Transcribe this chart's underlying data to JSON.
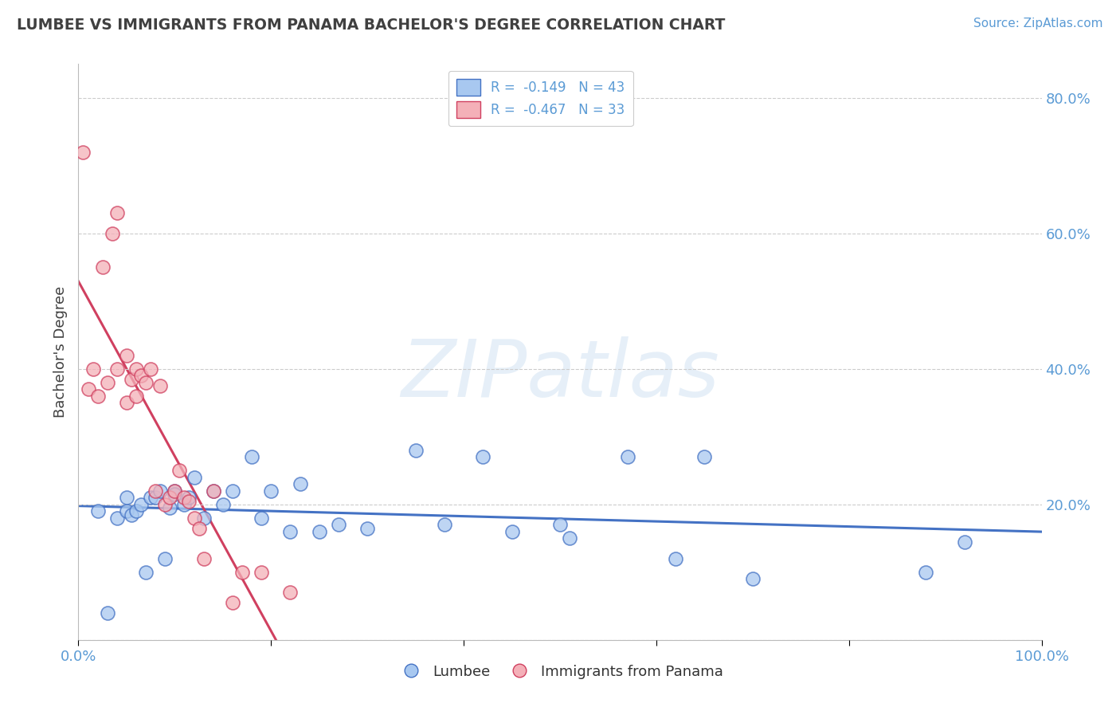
{
  "title": "LUMBEE VS IMMIGRANTS FROM PANAMA BACHELOR'S DEGREE CORRELATION CHART",
  "source": "Source: ZipAtlas.com",
  "ylabel": "Bachelor's Degree",
  "watermark": "ZIPatlas",
  "xlim": [
    0.0,
    1.0
  ],
  "ylim": [
    0.0,
    0.85
  ],
  "ytick_positions": [
    0.0,
    0.2,
    0.4,
    0.6,
    0.8
  ],
  "ytick_labels": [
    "",
    "20.0%",
    "40.0%",
    "60.0%",
    "80.0%"
  ],
  "xtick_positions": [
    0.0,
    0.2,
    0.4,
    0.6,
    0.8,
    1.0
  ],
  "xtick_labels": [
    "0.0%",
    "",
    "",
    "",
    "",
    "100.0%"
  ],
  "color_blue": "#a8c8f0",
  "color_pink": "#f4b0b8",
  "line_blue": "#4472c4",
  "line_pink": "#d04060",
  "background": "#ffffff",
  "grid_color": "#cccccc",
  "title_color": "#404040",
  "axis_label_color": "#5b9bd5",
  "legend_text_color": "#5b9bd5",
  "legend_label1": "R =  -0.149   N = 43",
  "legend_label2": "R =  -0.467   N = 33",
  "legend_bottom1": "Lumbee",
  "legend_bottom2": "Immigrants from Panama",
  "lumbee_x": [
    0.02,
    0.03,
    0.04,
    0.05,
    0.05,
    0.055,
    0.06,
    0.065,
    0.07,
    0.075,
    0.08,
    0.085,
    0.09,
    0.095,
    0.1,
    0.1,
    0.11,
    0.115,
    0.12,
    0.13,
    0.14,
    0.15,
    0.16,
    0.18,
    0.19,
    0.2,
    0.22,
    0.23,
    0.25,
    0.27,
    0.3,
    0.35,
    0.38,
    0.42,
    0.45,
    0.5,
    0.51,
    0.57,
    0.62,
    0.65,
    0.7,
    0.88,
    0.92
  ],
  "lumbee_y": [
    0.19,
    0.04,
    0.18,
    0.19,
    0.21,
    0.185,
    0.19,
    0.2,
    0.1,
    0.21,
    0.21,
    0.22,
    0.12,
    0.195,
    0.22,
    0.215,
    0.2,
    0.21,
    0.24,
    0.18,
    0.22,
    0.2,
    0.22,
    0.27,
    0.18,
    0.22,
    0.16,
    0.23,
    0.16,
    0.17,
    0.165,
    0.28,
    0.17,
    0.27,
    0.16,
    0.17,
    0.15,
    0.27,
    0.12,
    0.27,
    0.09,
    0.1,
    0.145
  ],
  "panama_x": [
    0.005,
    0.01,
    0.015,
    0.02,
    0.025,
    0.03,
    0.035,
    0.04,
    0.04,
    0.05,
    0.05,
    0.055,
    0.06,
    0.06,
    0.065,
    0.07,
    0.075,
    0.08,
    0.085,
    0.09,
    0.095,
    0.1,
    0.105,
    0.11,
    0.115,
    0.12,
    0.125,
    0.13,
    0.14,
    0.16,
    0.17,
    0.19,
    0.22
  ],
  "panama_y": [
    0.72,
    0.37,
    0.4,
    0.36,
    0.55,
    0.38,
    0.6,
    0.63,
    0.4,
    0.35,
    0.42,
    0.385,
    0.36,
    0.4,
    0.39,
    0.38,
    0.4,
    0.22,
    0.375,
    0.2,
    0.21,
    0.22,
    0.25,
    0.21,
    0.205,
    0.18,
    0.165,
    0.12,
    0.22,
    0.055,
    0.1,
    0.1,
    0.07
  ]
}
